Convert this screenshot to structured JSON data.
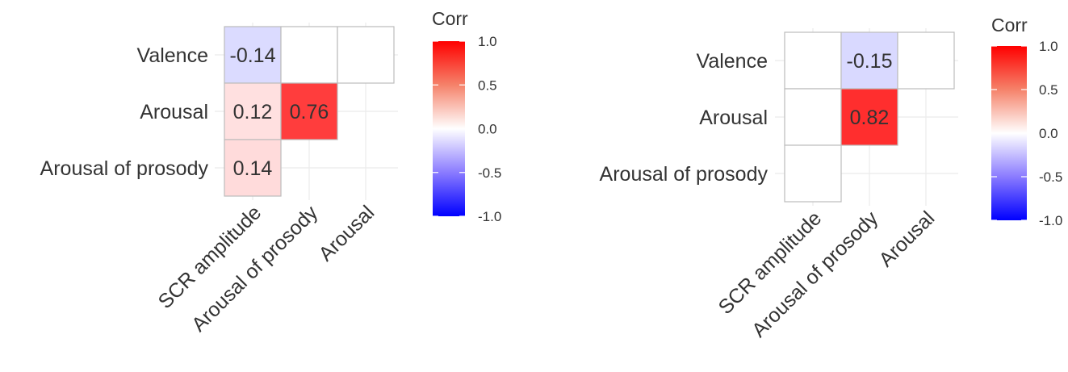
{
  "chart_data": [
    {
      "type": "heatmap",
      "rows": [
        "Valence",
        "Arousal",
        "Arousal of prosody"
      ],
      "columns": [
        "SCR amplitude",
        "Arousal of prosody",
        "Arousal"
      ],
      "cells": [
        {
          "row": "Valence",
          "col": "SCR amplitude",
          "value": -0.14,
          "label": "-0.14"
        },
        {
          "row": "Valence",
          "col": "Arousal of prosody",
          "value": null,
          "label": ""
        },
        {
          "row": "Valence",
          "col": "Arousal",
          "value": null,
          "label": ""
        },
        {
          "row": "Arousal",
          "col": "SCR amplitude",
          "value": 0.12,
          "label": "0.12"
        },
        {
          "row": "Arousal",
          "col": "Arousal of prosody",
          "value": 0.76,
          "label": "0.76"
        },
        {
          "row": "Arousal of prosody",
          "col": "SCR amplitude",
          "value": 0.14,
          "label": "0.14"
        }
      ],
      "legend": {
        "title": "Corr",
        "ticks": [
          "1.0",
          "0.5",
          "0.0",
          "-0.5",
          "-1.0"
        ],
        "limits": [
          -1,
          1
        ],
        "colors": {
          "low": "#0000ff",
          "mid": "#ffffff",
          "high": "#ff0000"
        }
      },
      "grid": true
    },
    {
      "type": "heatmap",
      "rows": [
        "Valence",
        "Arousal",
        "Arousal of prosody"
      ],
      "columns": [
        "SCR amplitude",
        "Arousal of prosody",
        "Arousal"
      ],
      "cells": [
        {
          "row": "Valence",
          "col": "SCR amplitude",
          "value": null,
          "label": ""
        },
        {
          "row": "Valence",
          "col": "Arousal of prosody",
          "value": -0.15,
          "label": "-0.15"
        },
        {
          "row": "Valence",
          "col": "Arousal",
          "value": null,
          "label": ""
        },
        {
          "row": "Arousal",
          "col": "SCR amplitude",
          "value": null,
          "label": ""
        },
        {
          "row": "Arousal",
          "col": "Arousal of prosody",
          "value": 0.82,
          "label": "0.82"
        },
        {
          "row": "Arousal of prosody",
          "col": "SCR amplitude",
          "value": null,
          "label": ""
        }
      ],
      "legend": {
        "title": "Corr",
        "ticks": [
          "1.0",
          "0.5",
          "0.0",
          "-0.5",
          "-1.0"
        ],
        "limits": [
          -1,
          1
        ],
        "colors": {
          "low": "#0000ff",
          "mid": "#ffffff",
          "high": "#ff0000"
        }
      },
      "grid": true
    }
  ]
}
